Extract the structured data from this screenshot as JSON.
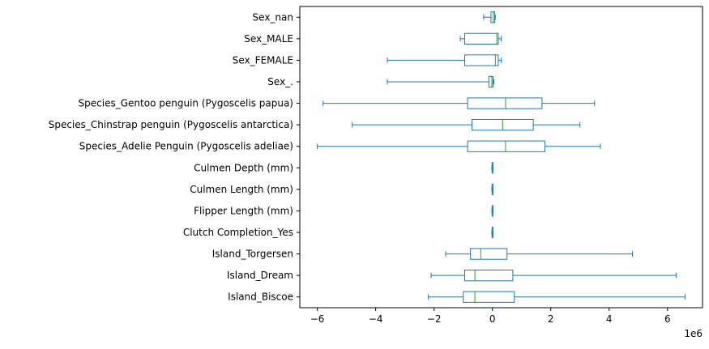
{
  "chart_data": {
    "type": "boxplot",
    "orientation": "horizontal",
    "title": "",
    "xlabel": "",
    "ylabel": "",
    "x_multiplier_label": "1e6",
    "xlim": [
      -6.6,
      7.2
    ],
    "xticks": [
      -6,
      -4,
      -2,
      0,
      2,
      4,
      6
    ],
    "xtick_labels": [
      "−6",
      "−4",
      "−2",
      "0",
      "2",
      "4",
      "6"
    ],
    "grid": false,
    "legend": "none",
    "colors": {
      "box": "#1f77b4",
      "median": "#2ca02c",
      "axes": "#000000",
      "background": "#ffffff"
    },
    "categories_top_to_bottom": [
      "Sex_nan",
      "Sex_MALE",
      "Sex_FEMALE",
      "Sex_.",
      "Species_Gentoo penguin (Pygoscelis papua)",
      "Species_Chinstrap penguin (Pygoscelis antarctica)",
      "Species_Adelie Penguin (Pygoscelis adeliae)",
      "Culmen Depth (mm)",
      "Culmen Length (mm)",
      "Flipper Length (mm)",
      "Clutch Completion_Yes",
      "Island_Torgersen",
      "Island_Dream",
      "Island_Biscoe"
    ],
    "boxes": [
      {
        "label": "Sex_nan",
        "whisker_low": -0.3,
        "q1": -0.05,
        "median": 0.03,
        "q3": 0.08,
        "whisker_high": 0.1
      },
      {
        "label": "Sex_MALE",
        "whisker_low": -1.1,
        "q1": -0.95,
        "median": 0.15,
        "q3": 0.2,
        "whisker_high": 0.3
      },
      {
        "label": "Sex_FEMALE",
        "whisker_low": -3.6,
        "q1": -0.95,
        "median": 0.1,
        "q3": 0.2,
        "whisker_high": 0.3
      },
      {
        "label": "Sex_.",
        "whisker_low": -3.6,
        "q1": -0.12,
        "median": -0.02,
        "q3": 0.02,
        "whisker_high": 0.05
      },
      {
        "label": "Species_Gentoo penguin (Pygoscelis papua)",
        "whisker_low": -5.8,
        "q1": -0.85,
        "median": 0.45,
        "q3": 1.7,
        "whisker_high": 3.5
      },
      {
        "label": "Species_Chinstrap penguin (Pygoscelis antarctica)",
        "whisker_low": -4.8,
        "q1": -0.7,
        "median": 0.35,
        "q3": 1.4,
        "whisker_high": 3.0
      },
      {
        "label": "Species_Adelie Penguin (Pygoscelis adeliae)",
        "whisker_low": -6.0,
        "q1": -0.85,
        "median": 0.45,
        "q3": 1.8,
        "whisker_high": 3.7
      },
      {
        "label": "Culmen Depth (mm)",
        "whisker_low": -0.02,
        "q1": -0.01,
        "median": 0.0,
        "q3": 0.01,
        "whisker_high": 0.02
      },
      {
        "label": "Culmen Length (mm)",
        "whisker_low": -0.02,
        "q1": -0.01,
        "median": 0.0,
        "q3": 0.01,
        "whisker_high": 0.02
      },
      {
        "label": "Flipper Length (mm)",
        "whisker_low": -0.02,
        "q1": -0.01,
        "median": 0.0,
        "q3": 0.01,
        "whisker_high": 0.02
      },
      {
        "label": "Clutch Completion_Yes",
        "whisker_low": -0.02,
        "q1": -0.01,
        "median": 0.0,
        "q3": 0.01,
        "whisker_high": 0.02
      },
      {
        "label": "Island_Torgersen",
        "whisker_low": -1.6,
        "q1": -0.75,
        "median": -0.4,
        "q3": 0.5,
        "whisker_high": 4.8
      },
      {
        "label": "Island_Dream",
        "whisker_low": -2.1,
        "q1": -0.95,
        "median": -0.6,
        "q3": 0.7,
        "whisker_high": 6.3
      },
      {
        "label": "Island_Biscoe",
        "whisker_low": -2.2,
        "q1": -1.0,
        "median": -0.6,
        "q3": 0.75,
        "whisker_high": 6.6
      }
    ]
  }
}
